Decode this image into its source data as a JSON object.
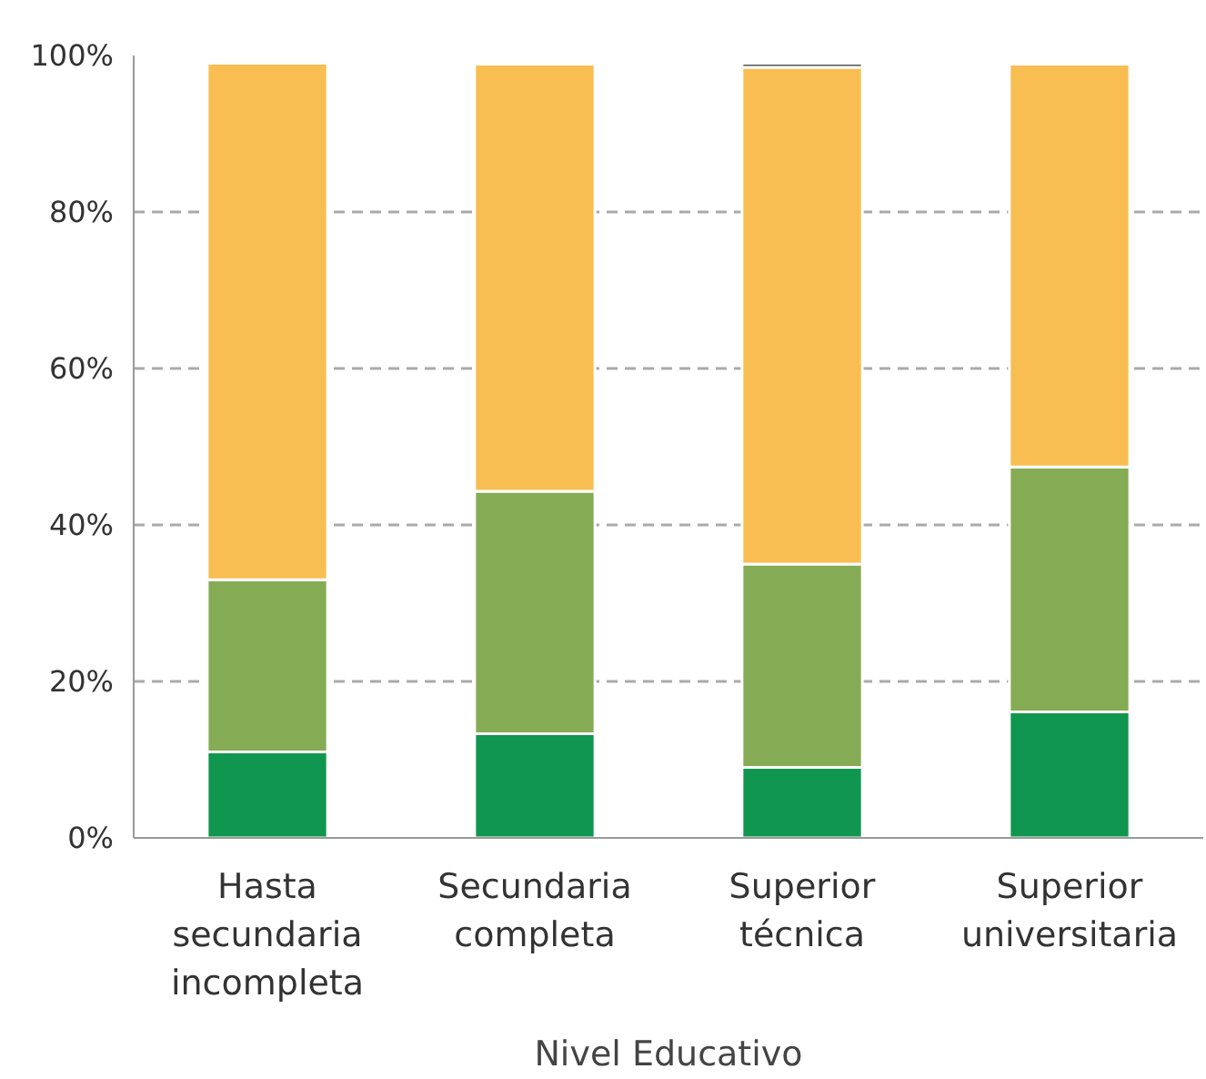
{
  "chart_data": {
    "type": "bar",
    "stacked": true,
    "xlabel": "Nivel Educativo",
    "categories": [
      "Hasta\nsecundaria\nincompleta",
      "Secundaria\ncompleta",
      "Superior\ntécnica",
      "Superior\nuniversitaria"
    ],
    "series": [
      {
        "color": "#10964e",
        "values": [
          11,
          13.3,
          9,
          16.1
        ]
      },
      {
        "color": "#86ab55",
        "values": [
          22,
          31,
          26,
          31.3
        ]
      },
      {
        "color": "#f8be51",
        "values": [
          66,
          54.6,
          63.5,
          51.5
        ]
      },
      {
        "color": "#555555",
        "values": [
          0,
          0,
          0.5,
          0
        ]
      }
    ],
    "ylim": [
      0,
      100
    ],
    "yticks": [
      {
        "value": 0,
        "label": "0%"
      },
      {
        "value": 20,
        "label": "20%"
      },
      {
        "value": 40,
        "label": "40%"
      },
      {
        "value": 60,
        "label": "60%"
      },
      {
        "value": 80,
        "label": "80%"
      },
      {
        "value": 100,
        "label": "100%"
      }
    ],
    "grid": "y"
  }
}
